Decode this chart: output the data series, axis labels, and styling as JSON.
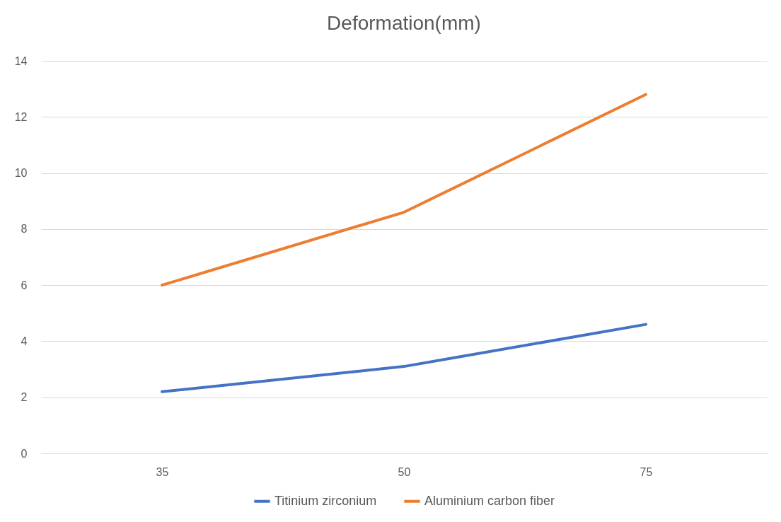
{
  "chart_data": {
    "type": "line",
    "title": "Deformation(mm)",
    "categories": [
      "35",
      "50",
      "75"
    ],
    "series": [
      {
        "name": "Titinium zirconium",
        "color": "#4472c4",
        "values": [
          2.2,
          3.1,
          4.6
        ]
      },
      {
        "name": "Aluminium carbon fiber",
        "color": "#ed7d31",
        "values": [
          6,
          8.6,
          12.8
        ]
      }
    ],
    "ylim": [
      0,
      14
    ],
    "yticks": [
      0,
      2,
      4,
      6,
      8,
      10,
      12,
      14
    ],
    "grid": "y",
    "legend": "bottom",
    "marker": "none",
    "line_style": "solid"
  }
}
